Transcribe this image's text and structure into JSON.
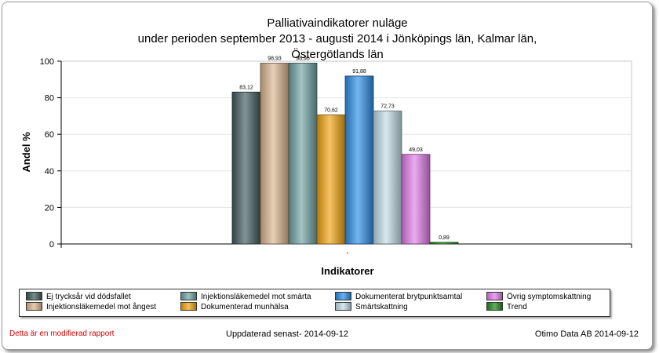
{
  "chart_data": {
    "type": "bar",
    "title_lines": [
      "Palliativaindikatorer nuläge",
      "under perioden september 2013 - augusti 2014 i   Jönköpings län,  Kalmar län,",
      "Östergötlands län"
    ],
    "xlabel": "Indikatorer",
    "ylabel": "Andel %",
    "x_tick_label": "`",
    "ylim": [
      0,
      100
    ],
    "yticks": [
      0,
      20,
      40,
      60,
      80,
      100
    ],
    "grid": true,
    "legend_position": "bottom",
    "series": [
      {
        "name": "Ej trycksår vid dödsfallet",
        "value": 83.12,
        "label": "83,12",
        "color": "#3f5a5a"
      },
      {
        "name": "Injektionsläkemedel mot ångest",
        "value": 98.93,
        "label": "98,93",
        "color": "#dcb68e"
      },
      {
        "name": "Injektionsläkemedel mot smärta",
        "value": 98.96,
        "label": "98,96",
        "color": "#6fa3a3"
      },
      {
        "name": "Dokumenterad munhälsa",
        "value": 70.62,
        "label": "70,62",
        "color": "#f3a410"
      },
      {
        "name": "Dokumenterat brytpunktsamtal",
        "value": 91.88,
        "label": "91,88",
        "color": "#2c8ee8"
      },
      {
        "name": "Smärtskattning",
        "value": 72.73,
        "label": "72,73",
        "color": "#c2dde6"
      },
      {
        "name": "Övrig symptomskattning",
        "value": 49.03,
        "label": "49,03",
        "color": "#e27ce8"
      },
      {
        "name": "Trend",
        "value": 0.89,
        "label": "0,89",
        "color": "#1e8a1e"
      }
    ]
  },
  "footer": {
    "left": "Detta är en modifierad rapport",
    "middle": "Uppdaterad senast- 2014-09-12",
    "right": "Otimo Data AB 2014-09-12"
  }
}
